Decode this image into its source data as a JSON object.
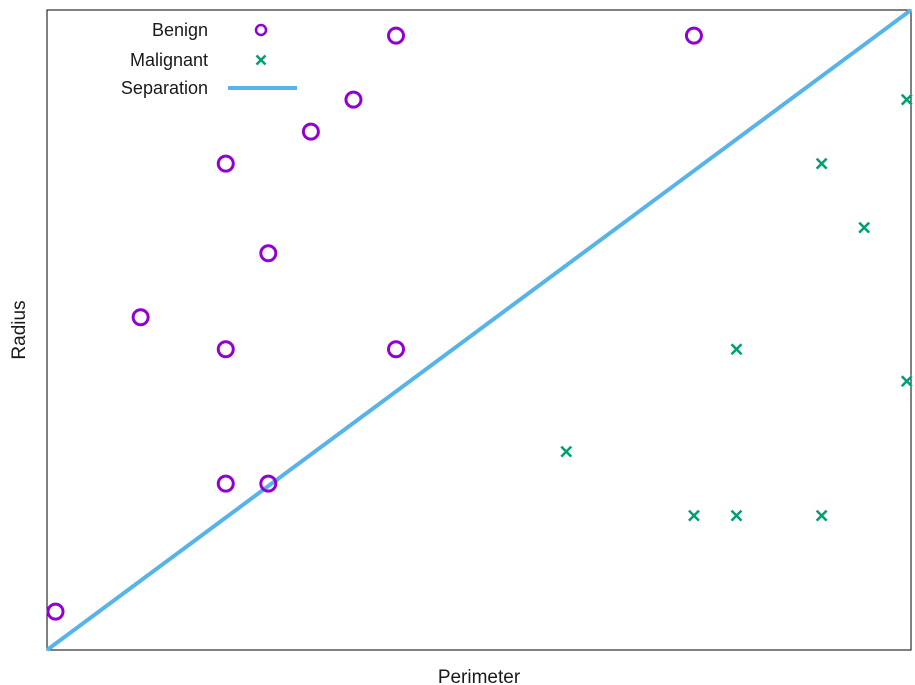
{
  "chart_data": {
    "type": "scatter",
    "title": "",
    "xlabel": "Perimeter",
    "ylabel": "Radius",
    "xlim": [
      0,
      20.3
    ],
    "ylim": [
      0,
      20
    ],
    "grid": false,
    "legend_position": "top-left",
    "series": [
      {
        "name": "Benign",
        "marker": "circle",
        "color": "#9400d3",
        "points": [
          [
            0.2,
            1.2
          ],
          [
            2.2,
            10.4
          ],
          [
            4.2,
            15.2
          ],
          [
            4.2,
            9.4
          ],
          [
            4.2,
            5.2
          ],
          [
            5.2,
            12.4
          ],
          [
            5.2,
            5.2
          ],
          [
            6.2,
            16.2
          ],
          [
            7.2,
            17.2
          ],
          [
            8.2,
            19.2
          ],
          [
            8.2,
            9.4
          ],
          [
            15.2,
            19.2
          ]
        ]
      },
      {
        "name": "Malignant",
        "marker": "cross",
        "color": "#009e73",
        "points": [
          [
            12.2,
            6.2
          ],
          [
            15.2,
            4.2
          ],
          [
            16.2,
            9.4
          ],
          [
            16.2,
            4.2
          ],
          [
            18.2,
            15.2
          ],
          [
            18.2,
            4.2
          ],
          [
            19.2,
            13.2
          ],
          [
            20.2,
            17.2
          ],
          [
            20.2,
            8.4
          ]
        ]
      },
      {
        "name": "Separation",
        "marker": "line",
        "color": "#56b4e9",
        "points": [
          [
            0,
            0
          ],
          [
            20.3,
            20
          ]
        ]
      }
    ]
  }
}
